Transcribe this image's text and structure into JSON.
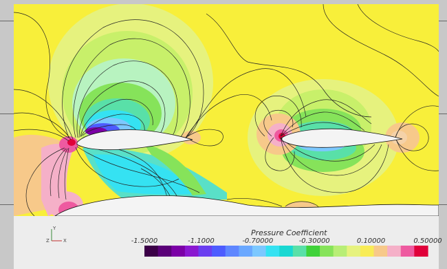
{
  "chart_data": {
    "type": "heatmap",
    "title": "",
    "colorbar": {
      "label": "Pressure Coefficient",
      "min": -1.5,
      "max": 0.5,
      "tick_values": [
        -1.5,
        -1.1,
        -0.7,
        -0.3,
        0.1,
        0.5
      ],
      "tick_labels": [
        "-1.5000",
        "-1.1000",
        "-0.70000",
        "-0.30000",
        "0.10000",
        "0.50000"
      ],
      "bands": 20,
      "colormap": [
        "#3b0047",
        "#5a0078",
        "#7b00a6",
        "#8a18d0",
        "#6a3ef0",
        "#4d5cff",
        "#5e86ff",
        "#6aa8ff",
        "#7cc8ff",
        "#35e2f2",
        "#19d8d2",
        "#59e0a8",
        "#3fd23a",
        "#86e35a",
        "#b8ee76",
        "#e6f27e",
        "#f8ec56",
        "#f7c98a",
        "#f5b0c8",
        "#ee5aa0",
        "#e0003a"
      ]
    },
    "orientation_axes": {
      "x": "X",
      "y": "Y",
      "z": "Z"
    },
    "colors": {
      "background": "#c8c8c8",
      "body": "#f2f2f2",
      "legend_panel": "#ededed",
      "freestream": "#f8ef3a"
    }
  }
}
